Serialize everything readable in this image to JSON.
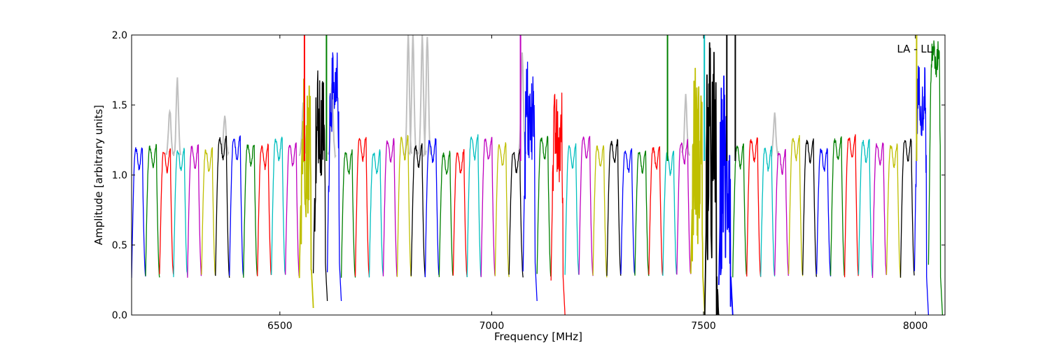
{
  "chart_data": {
    "type": "line",
    "xlabel": "Frequency [MHz]",
    "ylabel": "Amplitude [arbitrary units]",
    "annotation": "LA - LL",
    "xlim": [
      6150,
      8070
    ],
    "ylim": [
      0.0,
      2.0
    ],
    "xticks": [
      {
        "value": 6500,
        "label": "6500"
      },
      {
        "value": 7000,
        "label": "7000"
      },
      {
        "value": 7500,
        "label": "7500"
      },
      {
        "value": 8000,
        "label": "8000"
      }
    ],
    "yticks": [
      {
        "value": 0.0,
        "label": "0.0"
      },
      {
        "value": 0.5,
        "label": "0.5"
      },
      {
        "value": 1.0,
        "label": "1.0"
      },
      {
        "value": 1.5,
        "label": "1.5"
      },
      {
        "value": 2.0,
        "label": "2.0"
      }
    ],
    "grid": false,
    "legend": "none",
    "color_cycle": [
      "#0000ff",
      "#008000",
      "#ff0000",
      "#00bfbf",
      "#bf00bf",
      "#bfbf00",
      "#000000"
    ],
    "background_series_color": "#c0c0c0",
    "band_start": 6150,
    "band_width": 33,
    "band_count": 58,
    "band_peak": 1.2,
    "band_min": 0.28,
    "special_bands": [
      {
        "index": 12,
        "peak": 1.3,
        "min": 0.27,
        "noise": 0.5,
        "dip": 0.05
      },
      {
        "index": 13,
        "peak": 1.38,
        "min": 0.3,
        "noise": 0.4,
        "dip": 0.1
      },
      {
        "index": 14,
        "peak": 1.6,
        "min": 0.3,
        "noise": 0.3,
        "dip": 0.1
      },
      {
        "index": 28,
        "peak": 1.45,
        "min": 0.3,
        "noise": 0.4,
        "dip": 0.1
      },
      {
        "index": 30,
        "peak": 1.3,
        "min": 0.26,
        "noise": 0.3,
        "dip": 0.0
      },
      {
        "index": 40,
        "peak": 1.22,
        "min": 0.3,
        "noise": 0.6,
        "dip": 0.0
      },
      {
        "index": 41,
        "peak": 1.2,
        "min": 0.0,
        "noise": 0.8,
        "dip": 0.0
      },
      {
        "index": 42,
        "peak": 1.1,
        "min": 0.2,
        "noise": 0.7,
        "dip": 0.0
      },
      {
        "index": 56,
        "peak": 1.6,
        "min": 0.3,
        "noise": 0.2,
        "dip": 0.0
      },
      {
        "index": 57,
        "peak": 1.9,
        "min": 0.35,
        "noise": 0.1,
        "dip": 0.0
      }
    ],
    "spikes": [
      {
        "x": 6558,
        "y": 2.0,
        "color": "#ff0000"
      },
      {
        "x": 6610,
        "y": 2.0,
        "color": "#008000"
      },
      {
        "x": 7068,
        "y": 2.0,
        "color": "#bf00bf"
      },
      {
        "x": 7415,
        "y": 2.0,
        "color": "#008000"
      },
      {
        "x": 7502,
        "y": 2.0,
        "color": "#00bfbf"
      },
      {
        "x": 7555,
        "y": 2.0,
        "color": "#000000"
      },
      {
        "x": 7575,
        "y": 2.0,
        "color": "#000000"
      },
      {
        "x": 8003,
        "y": 2.0,
        "color": "#bfbf00"
      }
    ],
    "gray_peaks": [
      {
        "x": 6240,
        "y": 1.47
      },
      {
        "x": 6258,
        "y": 1.68
      },
      {
        "x": 6370,
        "y": 1.44
      },
      {
        "x": 6555,
        "y": 1.5
      },
      {
        "x": 6623,
        "y": 1.66
      },
      {
        "x": 6803,
        "y": 2.0
      },
      {
        "x": 6814,
        "y": 2.0
      },
      {
        "x": 6836,
        "y": 2.0
      },
      {
        "x": 6848,
        "y": 2.0
      },
      {
        "x": 7072,
        "y": 1.9
      },
      {
        "x": 7458,
        "y": 1.57
      },
      {
        "x": 7668,
        "y": 1.43
      }
    ]
  }
}
